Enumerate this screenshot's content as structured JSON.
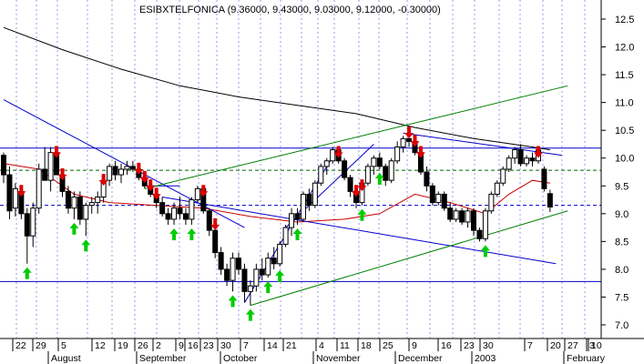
{
  "chart_data": {
    "type": "candlestick",
    "title": "ESIBXTELFONICA (9.36000, 9.43000, 9.03000, 9.12000, -0.30000)",
    "ylim": [
      6.75,
      12.75
    ],
    "y_ticks": [
      7.0,
      7.5,
      8.0,
      8.5,
      9.0,
      9.5,
      10.0,
      10.5,
      11.0,
      11.5,
      12.0,
      12.5
    ],
    "y_tick_labels": [
      "7.0",
      "7.5",
      "8.0",
      "8.5",
      "9.0",
      "9.5",
      "10.0",
      "10.5",
      "11.0",
      "11.5",
      "12.0",
      "12.5"
    ],
    "grid": "vertical dotted",
    "day_labels": [
      "22",
      "29",
      "5",
      "12",
      "19",
      "26",
      "2",
      "9",
      "16",
      "23",
      "30",
      "7",
      "14",
      "21",
      "4",
      "11",
      "18",
      "25",
      "9",
      "16",
      "23",
      "30",
      "7",
      "20",
      "27",
      "3",
      "10"
    ],
    "month_labels": [
      "August",
      "September",
      "October",
      "November",
      "December",
      "2003",
      "February"
    ],
    "candles": [
      [
        10.05,
        10.1,
        9.55,
        9.7
      ],
      [
        9.7,
        9.85,
        8.9,
        9.05
      ],
      [
        9.1,
        9.55,
        8.95,
        9.45
      ],
      [
        9.4,
        9.5,
        8.9,
        9.0
      ],
      [
        9.0,
        9.1,
        8.1,
        8.6
      ],
      [
        8.6,
        9.2,
        8.4,
        9.1
      ],
      [
        9.1,
        9.9,
        9.0,
        9.8
      ],
      [
        9.8,
        10.2,
        9.6,
        9.6
      ],
      [
        9.6,
        10.2,
        9.4,
        10.1
      ],
      [
        10.1,
        10.2,
        9.7,
        9.7
      ],
      [
        9.7,
        9.8,
        9.3,
        9.4
      ],
      [
        9.4,
        9.5,
        9.0,
        9.1
      ],
      [
        9.1,
        9.4,
        8.9,
        9.3
      ],
      [
        9.3,
        9.4,
        8.8,
        8.9
      ],
      [
        8.9,
        9.2,
        8.6,
        9.15
      ],
      [
        9.15,
        9.3,
        9.0,
        9.2
      ],
      [
        9.2,
        9.4,
        9.0,
        9.3
      ],
      [
        9.3,
        9.7,
        9.2,
        9.6
      ],
      [
        9.6,
        9.9,
        9.5,
        9.85
      ],
      [
        9.85,
        9.95,
        9.6,
        9.7
      ],
      [
        9.7,
        9.9,
        9.55,
        9.8
      ],
      [
        9.8,
        9.95,
        9.7,
        9.85
      ],
      [
        9.85,
        9.95,
        9.75,
        9.8
      ],
      [
        9.8,
        9.9,
        9.6,
        9.65
      ],
      [
        9.65,
        9.75,
        9.45,
        9.5
      ],
      [
        9.5,
        9.6,
        9.3,
        9.35
      ],
      [
        9.35,
        9.45,
        9.1,
        9.2
      ],
      [
        9.2,
        9.3,
        8.95,
        9.0
      ],
      [
        9.0,
        9.1,
        8.8,
        8.9
      ],
      [
        8.9,
        9.2,
        8.8,
        9.1
      ],
      [
        9.1,
        9.3,
        8.9,
        9.0
      ],
      [
        9.0,
        9.1,
        8.8,
        8.9
      ],
      [
        8.9,
        9.3,
        8.8,
        9.25
      ],
      [
        9.25,
        9.5,
        9.2,
        9.45
      ],
      [
        9.45,
        9.5,
        9.0,
        9.05
      ],
      [
        9.05,
        9.1,
        8.6,
        8.7
      ],
      [
        8.7,
        8.9,
        8.2,
        8.3
      ],
      [
        8.3,
        8.4,
        7.9,
        8.0
      ],
      [
        8.0,
        8.1,
        7.7,
        7.8
      ],
      [
        7.8,
        8.3,
        7.6,
        8.2
      ],
      [
        8.2,
        8.3,
        7.9,
        8.0
      ],
      [
        8.0,
        8.1,
        7.4,
        7.6
      ],
      [
        7.6,
        7.8,
        7.35,
        7.7
      ],
      [
        7.7,
        8.1,
        7.6,
        8.0
      ],
      [
        8.0,
        8.2,
        7.8,
        7.9
      ],
      [
        7.9,
        8.3,
        7.85,
        8.2
      ],
      [
        8.2,
        8.4,
        8.0,
        8.1
      ],
      [
        8.1,
        8.5,
        8.05,
        8.45
      ],
      [
        8.45,
        8.8,
        8.4,
        8.75
      ],
      [
        8.75,
        9.1,
        8.6,
        9.0
      ],
      [
        9.0,
        9.1,
        8.8,
        8.9
      ],
      [
        8.9,
        9.4,
        8.85,
        9.35
      ],
      [
        9.35,
        9.45,
        9.05,
        9.15
      ],
      [
        9.15,
        9.6,
        9.1,
        9.55
      ],
      [
        9.55,
        9.9,
        9.5,
        9.85
      ],
      [
        9.85,
        10.0,
        9.7,
        9.95
      ],
      [
        9.95,
        10.2,
        9.9,
        10.15
      ],
      [
        10.15,
        10.2,
        9.9,
        9.95
      ],
      [
        9.95,
        10.0,
        9.6,
        9.65
      ],
      [
        9.65,
        9.7,
        9.3,
        9.4
      ],
      [
        9.4,
        9.5,
        9.1,
        9.2
      ],
      [
        9.2,
        9.6,
        9.15,
        9.55
      ],
      [
        9.55,
        9.9,
        9.5,
        9.85
      ],
      [
        9.85,
        10.05,
        9.7,
        10.0
      ],
      [
        10.0,
        10.1,
        9.8,
        9.85
      ],
      [
        9.85,
        9.9,
        9.5,
        9.6
      ],
      [
        9.6,
        10.0,
        9.55,
        9.95
      ],
      [
        9.95,
        10.3,
        9.9,
        10.2
      ],
      [
        10.2,
        10.4,
        10.1,
        10.35
      ],
      [
        10.35,
        10.55,
        10.2,
        10.3
      ],
      [
        10.3,
        10.4,
        10.05,
        10.1
      ],
      [
        10.1,
        10.2,
        9.7,
        9.75
      ],
      [
        9.75,
        9.85,
        9.4,
        9.5
      ],
      [
        9.5,
        9.55,
        9.15,
        9.2
      ],
      [
        9.2,
        9.4,
        9.15,
        9.35
      ],
      [
        9.35,
        9.4,
        9.05,
        9.1
      ],
      [
        9.1,
        9.2,
        8.85,
        8.9
      ],
      [
        8.9,
        9.1,
        8.85,
        9.05
      ],
      [
        9.05,
        9.1,
        8.8,
        8.85
      ],
      [
        8.85,
        9.1,
        8.75,
        9.05
      ],
      [
        9.05,
        9.1,
        8.6,
        8.7
      ],
      [
        8.7,
        8.75,
        8.5,
        8.55
      ],
      [
        8.55,
        9.1,
        8.5,
        9.05
      ],
      [
        9.05,
        9.4,
        9.0,
        9.35
      ],
      [
        9.35,
        9.6,
        9.3,
        9.55
      ],
      [
        9.55,
        9.85,
        9.5,
        9.8
      ],
      [
        9.8,
        10.05,
        9.75,
        10.0
      ],
      [
        10.0,
        10.2,
        9.9,
        10.15
      ],
      [
        10.15,
        10.25,
        9.85,
        9.9
      ],
      [
        9.9,
        10.05,
        9.85,
        10.0
      ],
      [
        10.0,
        10.1,
        9.85,
        9.95
      ],
      [
        9.95,
        10.2,
        9.9,
        10.15
      ],
      [
        9.8,
        9.85,
        9.4,
        9.45
      ],
      [
        9.36,
        9.43,
        9.03,
        9.12
      ]
    ],
    "buy_signals_at_low": [
      4,
      12,
      14,
      29,
      32,
      39,
      42,
      45,
      47,
      50,
      61,
      64,
      82
    ],
    "sell_signals_at_high": [
      3,
      9,
      10,
      17,
      23,
      24,
      25,
      26,
      34,
      36,
      57,
      60,
      61,
      69,
      70,
      71,
      91
    ],
    "reference_lines": {
      "resistance": 10.18,
      "support": 7.78,
      "upper_dashed": 9.78,
      "lower_dashed": 9.15
    },
    "moving_averages": [
      {
        "color": "#000000",
        "points": [
          [
            0,
            12.35
          ],
          [
            10,
            11.95
          ],
          [
            20,
            11.6
          ],
          [
            30,
            11.3
          ],
          [
            40,
            11.1
          ],
          [
            50,
            10.95
          ],
          [
            60,
            10.8
          ],
          [
            70,
            10.55
          ],
          [
            80,
            10.35
          ],
          [
            90,
            10.2
          ],
          [
            93,
            10.15
          ]
        ]
      },
      {
        "color": "#cc0000",
        "points": [
          [
            0,
            9.9
          ],
          [
            6,
            9.8
          ],
          [
            12,
            9.35
          ],
          [
            18,
            9.2
          ],
          [
            26,
            9.15
          ],
          [
            34,
            9.1
          ],
          [
            42,
            8.95
          ],
          [
            50,
            8.85
          ],
          [
            58,
            8.9
          ],
          [
            64,
            9.0
          ],
          [
            70,
            9.35
          ],
          [
            76,
            9.2
          ],
          [
            82,
            9.0
          ],
          [
            86,
            9.35
          ],
          [
            90,
            9.6
          ],
          [
            93,
            9.55
          ]
        ]
      }
    ],
    "trend_lines": [
      {
        "color": "#0000cc",
        "from": [
          0,
          11.05
        ],
        "to": [
          41,
          8.75
        ]
      },
      {
        "color": "#0000cc",
        "from": [
          27,
          9.3
        ],
        "to": [
          94,
          8.1
        ]
      },
      {
        "color": "#0000cc",
        "from": [
          24,
          9.5
        ],
        "to": [
          30,
          9.5
        ]
      },
      {
        "color": "#0000cc",
        "from": [
          41,
          7.4
        ],
        "to": [
          57,
          10.2
        ]
      },
      {
        "color": "#0000cc",
        "from": [
          48,
          8.75
        ],
        "to": [
          63,
          10.25
        ]
      },
      {
        "color": "#0000cc",
        "from": [
          68,
          10.45
        ],
        "to": [
          95,
          10.05
        ]
      },
      {
        "color": "#008000",
        "from": [
          42,
          7.35
        ],
        "to": [
          96,
          9.05
        ]
      },
      {
        "color": "#008000",
        "from": [
          24,
          9.45
        ],
        "to": [
          96,
          11.3
        ]
      }
    ],
    "colors": {
      "candle": "#000000",
      "buy_arrow": "#00cc00",
      "sell_arrow": "#dd0000",
      "grid": "#9999ee",
      "horizontal_line": "#0000cc"
    }
  }
}
